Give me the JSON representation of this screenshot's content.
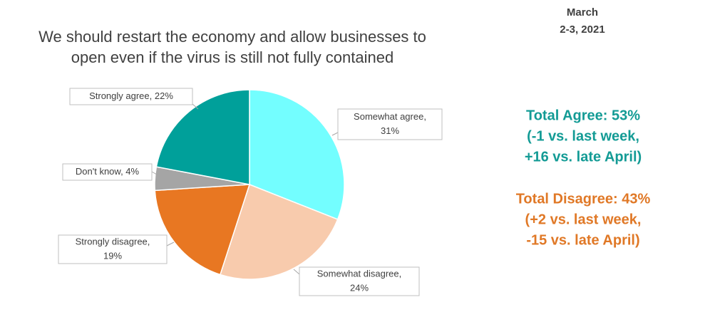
{
  "chart_data": {
    "type": "pie",
    "title": [
      "We should restart the economy and allow businesses to",
      "open even if the virus is still not fully contained"
    ],
    "date": [
      "March",
      "2-3, 2021"
    ],
    "categories": [
      "Somewhat agree",
      "Somewhat disagree",
      "Strongly disagree",
      "Don't know",
      "Strongly agree"
    ],
    "values": [
      31,
      24,
      19,
      4,
      22
    ],
    "data_labels": [
      [
        "Somewhat agree,",
        "31%"
      ],
      [
        "Somewhat disagree,",
        "24%"
      ],
      [
        "Strongly disagree,",
        "19%"
      ],
      [
        "Don't know, 4%"
      ],
      [
        "Strongly agree, 22%"
      ]
    ],
    "colors": [
      "#73feff",
      "#f8cbad",
      "#e87722",
      "#a5a5a5",
      "#00a09a"
    ],
    "annotations": [
      {
        "color": "#139b95",
        "lines": [
          "Total Agree: 53%",
          "(-1 vs. last week,",
          "+16 vs. late April)"
        ]
      },
      {
        "color": "#e07826",
        "lines": [
          "Total Disagree: 43%",
          "(+2 vs. last week,",
          "-15 vs. late April)"
        ]
      }
    ]
  }
}
